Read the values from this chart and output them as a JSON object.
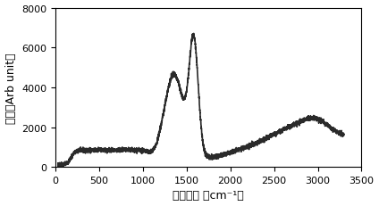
{
  "xlabel": "拉曼位移 （cm⁻¹）",
  "ylabel": "强度（Arb unit）",
  "xlim": [
    0,
    3500
  ],
  "ylim": [
    0,
    8000
  ],
  "xticks": [
    0,
    500,
    1000,
    1500,
    2000,
    2500,
    3000,
    3500
  ],
  "yticks": [
    0,
    2000,
    4000,
    6000,
    8000
  ],
  "line_color": "#2a2a2a",
  "line_width": 1.2,
  "background_color": "#ffffff",
  "font_size_label": 9,
  "font_size_tick": 8,
  "noise_amplitude": 55
}
